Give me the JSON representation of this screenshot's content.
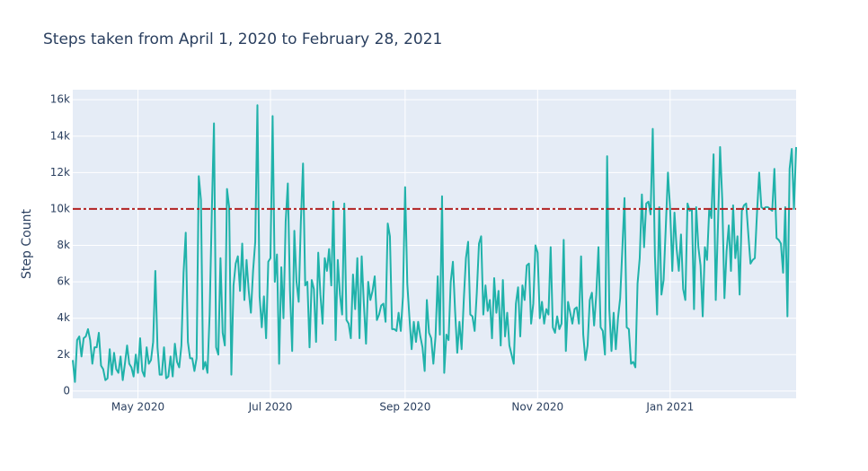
{
  "chart_data": {
    "type": "line",
    "title": "Steps taken from April 1, 2020 to February 28, 2021",
    "y_label": "Step Count",
    "x": [
      "2020-04-01",
      "2020-04-02",
      "2020-04-03",
      "2020-04-04",
      "2020-04-05",
      "2020-04-06",
      "2020-04-07",
      "2020-04-08",
      "2020-04-09",
      "2020-04-10",
      "2020-04-11",
      "2020-04-12",
      "2020-04-13",
      "2020-04-14",
      "2020-04-15",
      "2020-04-16",
      "2020-04-17",
      "2020-04-18",
      "2020-04-19",
      "2020-04-20",
      "2020-04-21",
      "2020-04-22",
      "2020-04-23",
      "2020-04-24",
      "2020-04-25",
      "2020-04-26",
      "2020-04-27",
      "2020-04-28",
      "2020-04-29",
      "2020-04-30",
      "2020-05-01",
      "2020-05-02",
      "2020-05-03",
      "2020-05-04",
      "2020-05-05",
      "2020-05-06",
      "2020-05-07",
      "2020-05-08",
      "2020-05-09",
      "2020-05-10",
      "2020-05-11",
      "2020-05-12",
      "2020-05-13",
      "2020-05-14",
      "2020-05-15",
      "2020-05-16",
      "2020-05-17",
      "2020-05-18",
      "2020-05-19",
      "2020-05-20",
      "2020-05-21",
      "2020-05-22",
      "2020-05-23",
      "2020-05-24",
      "2020-05-25",
      "2020-05-26",
      "2020-05-27",
      "2020-05-28",
      "2020-05-29",
      "2020-05-30",
      "2020-05-31",
      "2020-06-01",
      "2020-06-02",
      "2020-06-03",
      "2020-06-04",
      "2020-06-05",
      "2020-06-06",
      "2020-06-07",
      "2020-06-08",
      "2020-06-09",
      "2020-06-10",
      "2020-06-11",
      "2020-06-12",
      "2020-06-13",
      "2020-06-14",
      "2020-06-15",
      "2020-06-16",
      "2020-06-17",
      "2020-06-18",
      "2020-06-19",
      "2020-06-20",
      "2020-06-21",
      "2020-06-22",
      "2020-06-23",
      "2020-06-24",
      "2020-06-25",
      "2020-06-26",
      "2020-06-27",
      "2020-06-28",
      "2020-06-29",
      "2020-06-30",
      "2020-07-01",
      "2020-07-02",
      "2020-07-03",
      "2020-07-04",
      "2020-07-05",
      "2020-07-06",
      "2020-07-07",
      "2020-07-08",
      "2020-07-09",
      "2020-07-10",
      "2020-07-11",
      "2020-07-12",
      "2020-07-13",
      "2020-07-14",
      "2020-07-15",
      "2020-07-16",
      "2020-07-17",
      "2020-07-18",
      "2020-07-19",
      "2020-07-20",
      "2020-07-21",
      "2020-07-22",
      "2020-07-23",
      "2020-07-24",
      "2020-07-25",
      "2020-07-26",
      "2020-07-27",
      "2020-07-28",
      "2020-07-29",
      "2020-07-30",
      "2020-07-31",
      "2020-08-01",
      "2020-08-02",
      "2020-08-03",
      "2020-08-04",
      "2020-08-05",
      "2020-08-06",
      "2020-08-07",
      "2020-08-08",
      "2020-08-09",
      "2020-08-10",
      "2020-08-11",
      "2020-08-12",
      "2020-08-13",
      "2020-08-14",
      "2020-08-15",
      "2020-08-16",
      "2020-08-17",
      "2020-08-18",
      "2020-08-19",
      "2020-08-20",
      "2020-08-21",
      "2020-08-22",
      "2020-08-23",
      "2020-08-24",
      "2020-08-25",
      "2020-08-26",
      "2020-08-27",
      "2020-08-28",
      "2020-08-29",
      "2020-08-30",
      "2020-08-31",
      "2020-09-01",
      "2020-09-02",
      "2020-09-03",
      "2020-09-04",
      "2020-09-05",
      "2020-09-06",
      "2020-09-07",
      "2020-09-08",
      "2020-09-09",
      "2020-09-10",
      "2020-09-11",
      "2020-09-12",
      "2020-09-13",
      "2020-09-14",
      "2020-09-15",
      "2020-09-16",
      "2020-09-17",
      "2020-09-18",
      "2020-09-19",
      "2020-09-20",
      "2020-09-21",
      "2020-09-22",
      "2020-09-23",
      "2020-09-24",
      "2020-09-25",
      "2020-09-26",
      "2020-09-27",
      "2020-09-28",
      "2020-09-29",
      "2020-09-30",
      "2020-10-01",
      "2020-10-02",
      "2020-10-03",
      "2020-10-04",
      "2020-10-05",
      "2020-10-06",
      "2020-10-07",
      "2020-10-08",
      "2020-10-09",
      "2020-10-10",
      "2020-10-11",
      "2020-10-12",
      "2020-10-13",
      "2020-10-14",
      "2020-10-15",
      "2020-10-16",
      "2020-10-17",
      "2020-10-18",
      "2020-10-19",
      "2020-10-20",
      "2020-10-21",
      "2020-10-22",
      "2020-10-23",
      "2020-10-24",
      "2020-10-25",
      "2020-10-26",
      "2020-10-27",
      "2020-10-28",
      "2020-10-29",
      "2020-10-30",
      "2020-10-31",
      "2020-11-01",
      "2020-11-02",
      "2020-11-03",
      "2020-11-04",
      "2020-11-05",
      "2020-11-06",
      "2020-11-07",
      "2020-11-08",
      "2020-11-09",
      "2020-11-10",
      "2020-11-11",
      "2020-11-12",
      "2020-11-13",
      "2020-11-14",
      "2020-11-15",
      "2020-11-16",
      "2020-11-17",
      "2020-11-18",
      "2020-11-19",
      "2020-11-20",
      "2020-11-21",
      "2020-11-22",
      "2020-11-23",
      "2020-11-24",
      "2020-11-25",
      "2020-11-26",
      "2020-11-27",
      "2020-11-28",
      "2020-11-29",
      "2020-11-30",
      "2020-12-01",
      "2020-12-02",
      "2020-12-03",
      "2020-12-04",
      "2020-12-05",
      "2020-12-06",
      "2020-12-07",
      "2020-12-08",
      "2020-12-09",
      "2020-12-10",
      "2020-12-11",
      "2020-12-12",
      "2020-12-13",
      "2020-12-14",
      "2020-12-15",
      "2020-12-16",
      "2020-12-17",
      "2020-12-18",
      "2020-12-19",
      "2020-12-20",
      "2020-12-21",
      "2020-12-22",
      "2020-12-23",
      "2020-12-24",
      "2020-12-25",
      "2020-12-26",
      "2020-12-27",
      "2020-12-28",
      "2020-12-29",
      "2020-12-30",
      "2020-12-31",
      "2021-01-01",
      "2021-01-02",
      "2021-01-03",
      "2021-01-04",
      "2021-01-05",
      "2021-01-06",
      "2021-01-07",
      "2021-01-08",
      "2021-01-09",
      "2021-01-10",
      "2021-01-11",
      "2021-01-12",
      "2021-01-13",
      "2021-01-14",
      "2021-01-15",
      "2021-01-16",
      "2021-01-17",
      "2021-01-18",
      "2021-01-19",
      "2021-01-20",
      "2021-01-21",
      "2021-01-22",
      "2021-01-23",
      "2021-01-24",
      "2021-01-25",
      "2021-01-26",
      "2021-01-27",
      "2021-01-28",
      "2021-01-29",
      "2021-01-30",
      "2021-01-31",
      "2021-02-01",
      "2021-02-02",
      "2021-02-03",
      "2021-02-04",
      "2021-02-05",
      "2021-02-06",
      "2021-02-07",
      "2021-02-08",
      "2021-02-09",
      "2021-02-10",
      "2021-02-11",
      "2021-02-12",
      "2021-02-13",
      "2021-02-14",
      "2021-02-15",
      "2021-02-16",
      "2021-02-17",
      "2021-02-18",
      "2021-02-19",
      "2021-02-20",
      "2021-02-21",
      "2021-02-22",
      "2021-02-23",
      "2021-02-24",
      "2021-02-25",
      "2021-02-26",
      "2021-02-27",
      "2021-02-28"
    ],
    "series": [
      {
        "color": "#20b2aa",
        "values": [
          1700,
          500,
          2800,
          3000,
          1900,
          2900,
          3000,
          3400,
          2800,
          1500,
          2400,
          2400,
          3200,
          1400,
          1200,
          600,
          700,
          2300,
          900,
          2100,
          1200,
          1000,
          1900,
          600,
          1500,
          2500,
          1500,
          1300,
          800,
          2000,
          1000,
          2900,
          1100,
          800,
          2400,
          1500,
          1700,
          2700,
          6600,
          2400,
          900,
          900,
          2400,
          700,
          800,
          1900,
          800,
          2600,
          1600,
          1300,
          2500,
          6500,
          8700,
          2700,
          1800,
          1800,
          1100,
          1800,
          11800,
          10500,
          1200,
          1600,
          1000,
          4200,
          9800,
          14700,
          2400,
          2000,
          7300,
          3200,
          2500,
          11100,
          10100,
          900,
          5800,
          7000,
          7400,
          5500,
          8100,
          5000,
          7200,
          5500,
          4300,
          6600,
          8200,
          15700,
          5200,
          3500,
          5200,
          2900,
          7100,
          7300,
          15100,
          6000,
          7500,
          1500,
          6800,
          4000,
          9300,
          11400,
          5500,
          2200,
          8800,
          6000,
          4900,
          9300,
          12500,
          5800,
          6000,
          2400,
          6100,
          5600,
          2700,
          7600,
          5300,
          3700,
          7300,
          6600,
          7800,
          5800,
          10400,
          2800,
          7200,
          5300,
          4200,
          10300,
          3900,
          3700,
          2900,
          6400,
          4500,
          7300,
          2900,
          7400,
          4800,
          2600,
          6000,
          5000,
          5500,
          6300,
          3900,
          4200,
          4700,
          4800,
          3800,
          9200,
          8500,
          3400,
          3400,
          3300,
          4300,
          3300,
          5200,
          11200,
          5900,
          4000,
          2300,
          3800,
          2700,
          3800,
          3000,
          2400,
          1100,
          5000,
          3200,
          2900,
          1500,
          3000,
          6300,
          3100,
          10700,
          1000,
          3100,
          2800,
          6000,
          7100,
          4400,
          2100,
          3800,
          2300,
          5000,
          7300,
          8200,
          4200,
          4100,
          3300,
          5400,
          8100,
          8500,
          4200,
          5800,
          4400,
          5000,
          2900,
          6200,
          4300,
          5500,
          2500,
          6100,
          3000,
          4300,
          2500,
          2000,
          1500,
          4800,
          5700,
          3000,
          5800,
          5000,
          6900,
          7000,
          3700,
          4800,
          8000,
          7600,
          4000,
          4900,
          3700,
          4500,
          4200,
          7900,
          3500,
          3200,
          4100,
          3400,
          3700,
          8300,
          2200,
          4900,
          4300,
          3700,
          4500,
          4600,
          3700,
          7400,
          3100,
          1700,
          2500,
          5000,
          5400,
          3600,
          5300,
          7900,
          3500,
          3300,
          2000,
          12900,
          4500,
          2200,
          4300,
          2300,
          4000,
          5100,
          7800,
          10600,
          3500,
          3400,
          1500,
          1600,
          1300,
          5900,
          7300,
          10800,
          7900,
          10300,
          10400,
          9700,
          14400,
          7400,
          4200,
          10100,
          5300,
          6100,
          9000,
          12000,
          10000,
          6600,
          9800,
          7800,
          6600,
          8600,
          5600,
          5000,
          10300,
          9900,
          10000,
          4500,
          10100,
          7900,
          6900,
          4100,
          7900,
          7200,
          10000,
          9500,
          13000,
          5000,
          9000,
          13400,
          10500,
          5100,
          7700,
          9100,
          6600,
          10200,
          7300,
          8500,
          5300,
          9900,
          10200,
          10300,
          8600,
          7000,
          7200,
          7300,
          9800,
          12000,
          10100,
          10000,
          10100,
          10100,
          10000,
          9900,
          12200,
          8400,
          8300,
          8100,
          6500,
          10100,
          4100,
          12200,
          13300,
          10000,
          13400
        ]
      }
    ],
    "hline": {
      "value": 10000,
      "color": "#b22222"
    },
    "xlim": [
      "2020-04-01",
      "2021-02-28"
    ],
    "xticks": [
      {
        "value": "2020-05-01",
        "label": "May 2020"
      },
      {
        "value": "2020-07-01",
        "label": "Jul 2020"
      },
      {
        "value": "2020-09-01",
        "label": "Sep 2020"
      },
      {
        "value": "2020-11-01",
        "label": "Nov 2020"
      },
      {
        "value": "2021-01-01",
        "label": "Jan 2021"
      }
    ],
    "ylim": [
      -400,
      16550
    ],
    "yticks": [
      0,
      {
        "value": 2000,
        "label": "2k"
      },
      {
        "value": 4000,
        "label": "4k"
      },
      {
        "value": 6000,
        "label": "6k"
      },
      {
        "value": 8000,
        "label": "8k"
      },
      {
        "value": 10000,
        "label": "10k"
      },
      {
        "value": 12000,
        "label": "12k"
      },
      {
        "value": 14000,
        "label": "14k"
      },
      {
        "value": 16000,
        "label": "16k"
      }
    ],
    "grid": true
  }
}
